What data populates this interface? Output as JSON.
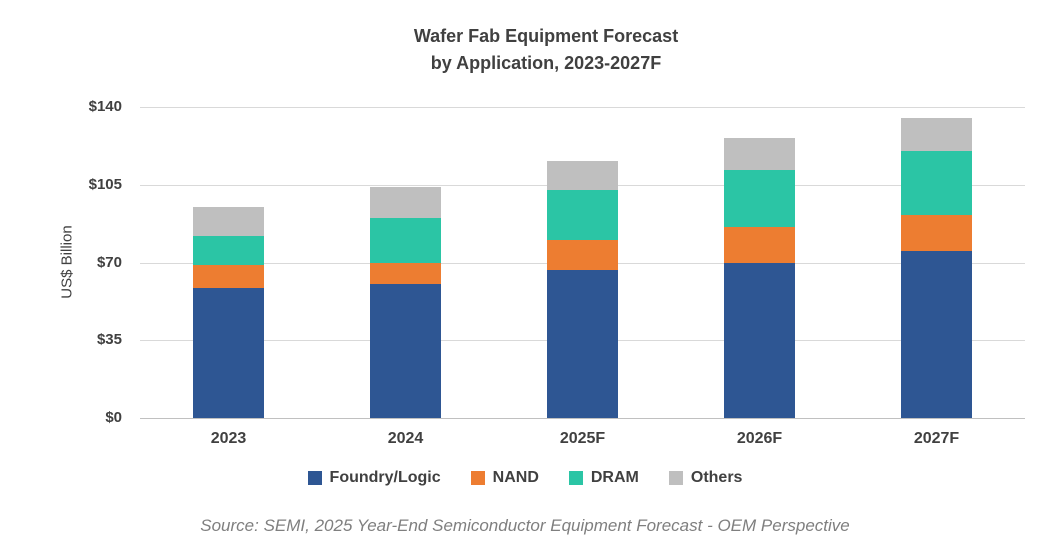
{
  "title": {
    "line1": "Wafer Fab Equipment Forecast",
    "line2": "by Application, 2023-2027F"
  },
  "y_axis": {
    "label": "US$ Billion",
    "ticks": [
      {
        "label": "$140",
        "value": 140
      },
      {
        "label": "$105",
        "value": 105
      },
      {
        "label": "$70",
        "value": 70
      },
      {
        "label": "$35",
        "value": 35
      },
      {
        "label": "$0",
        "value": 0
      }
    ]
  },
  "source": "Source: SEMI, 2025 Year-End Semiconductor Equipment Forecast - OEM Perspective",
  "colors": {
    "grid": "#d9d9d9",
    "baseline": "#c0c0c0",
    "text": "#404040",
    "source_text": "#7f7f7f"
  },
  "chart_data": {
    "type": "bar",
    "stacked": true,
    "title": "Wafer Fab Equipment Forecast by Application, 2023-2027F",
    "xlabel": "",
    "ylabel": "US$ Billion",
    "ylim": [
      0,
      140
    ],
    "grid": true,
    "legend_position": "bottom",
    "categories": [
      "2023",
      "2024",
      "2025F",
      "2026F",
      "2027F"
    ],
    "series": [
      {
        "name": "Foundry/Logic",
        "color": "#2e5693",
        "values": [
          58.5,
          60.5,
          66.5,
          70.0,
          75.0
        ]
      },
      {
        "name": "NAND",
        "color": "#ed7d31",
        "values": [
          10.5,
          9.5,
          13.5,
          16.0,
          16.5
        ]
      },
      {
        "name": "DRAM",
        "color": "#2bc5a5",
        "values": [
          13.0,
          20.0,
          22.5,
          25.5,
          28.5
        ]
      },
      {
        "name": "Others",
        "color": "#bfbfbf",
        "values": [
          13.0,
          14.0,
          13.0,
          14.5,
          15.0
        ]
      }
    ],
    "totals": [
      95.0,
      104.0,
      115.5,
      126.0,
      135.0
    ]
  }
}
